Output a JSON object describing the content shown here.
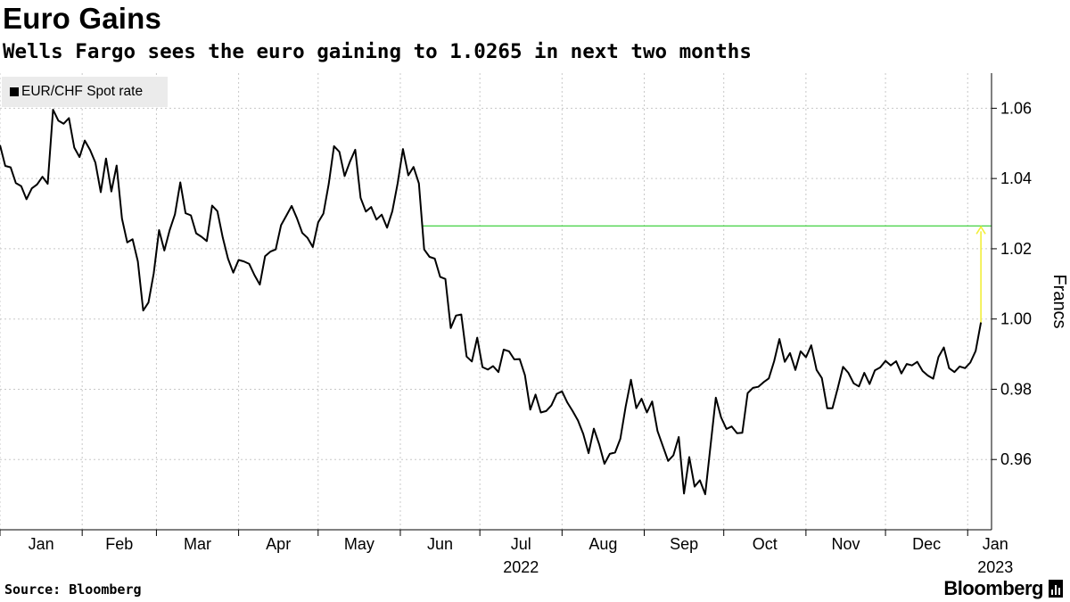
{
  "header": {
    "title": "Euro Gains",
    "subtitle": "Wells Fargo sees the euro gaining to 1.0265 in next two months"
  },
  "legend": {
    "label": "EUR/CHF Spot rate",
    "swatch_color": "#000000"
  },
  "footer": {
    "source": "Source: Bloomberg",
    "logo": "Bloomberg"
  },
  "colors": {
    "line": "#000000",
    "target_line": "#2ecc2e",
    "arrow": "#f2ef3a",
    "grid": "#c8c8c8"
  },
  "chart_data": {
    "type": "line",
    "title": "Euro Gains",
    "subtitle": "Wells Fargo sees the euro gaining to 1.0265 in next two months",
    "ylabel": "Francs",
    "xlabel": "",
    "ylim": [
      0.94,
      1.07
    ],
    "yticks": [
      0.96,
      0.98,
      1.0,
      1.02,
      1.04,
      1.06
    ],
    "ytick_labels": [
      "0.96",
      "0.98",
      "1.00",
      "1.02",
      "1.04",
      "1.06"
    ],
    "y_axis_side": "right",
    "grid": true,
    "legend_position": "top-left",
    "x_range": [
      "2022-01-01",
      "2023-01-10"
    ],
    "xticks": [
      {
        "label": "Jan",
        "date": "2022-01-01"
      },
      {
        "label": "Feb",
        "date": "2022-02-01"
      },
      {
        "label": "Mar",
        "date": "2022-03-01"
      },
      {
        "label": "Apr",
        "date": "2022-04-01"
      },
      {
        "label": "May",
        "date": "2022-05-01"
      },
      {
        "label": "Jun",
        "date": "2022-06-01"
      },
      {
        "label": "Jul",
        "date": "2022-07-01"
      },
      {
        "label": "Aug",
        "date": "2022-08-01"
      },
      {
        "label": "Sep",
        "date": "2022-09-01"
      },
      {
        "label": "Oct",
        "date": "2022-10-01"
      },
      {
        "label": "Nov",
        "date": "2022-11-01"
      },
      {
        "label": "Dec",
        "date": "2022-12-01"
      },
      {
        "label": "Jan",
        "date": "2023-01-01"
      }
    ],
    "year_labels": [
      {
        "label": "2022",
        "date": "2022-07-01"
      },
      {
        "label": "2023",
        "date": "2023-01-01"
      }
    ],
    "series": [
      {
        "name": "EUR/CHF Spot rate",
        "color": "#000000",
        "points": [
          [
            "2022-01-01",
            1.0495
          ],
          [
            "2022-01-03",
            1.0436
          ],
          [
            "2022-01-05",
            1.0432
          ],
          [
            "2022-01-07",
            1.0387
          ],
          [
            "2022-01-09",
            1.0378
          ],
          [
            "2022-01-11",
            1.0341
          ],
          [
            "2022-01-13",
            1.0372
          ],
          [
            "2022-01-15",
            1.0383
          ],
          [
            "2022-01-17",
            1.0405
          ],
          [
            "2022-01-19",
            1.0385
          ],
          [
            "2022-01-21",
            1.0596
          ],
          [
            "2022-01-23",
            1.0565
          ],
          [
            "2022-01-25",
            1.0556
          ],
          [
            "2022-01-27",
            1.0572
          ],
          [
            "2022-01-29",
            1.0488
          ],
          [
            "2022-01-31",
            1.0461
          ],
          [
            "2022-02-02",
            1.0508
          ],
          [
            "2022-02-04",
            1.0481
          ],
          [
            "2022-02-06",
            1.0445
          ],
          [
            "2022-02-08",
            1.0361
          ],
          [
            "2022-02-10",
            1.0457
          ],
          [
            "2022-02-12",
            1.0363
          ],
          [
            "2022-02-14",
            1.0437
          ],
          [
            "2022-02-16",
            1.0286
          ],
          [
            "2022-02-18",
            1.0218
          ],
          [
            "2022-02-20",
            1.0227
          ],
          [
            "2022-02-22",
            1.0164
          ],
          [
            "2022-02-24",
            1.0024
          ],
          [
            "2022-02-26",
            1.0047
          ],
          [
            "2022-02-28",
            1.013
          ],
          [
            "2022-03-02",
            1.0253
          ],
          [
            "2022-03-04",
            1.0195
          ],
          [
            "2022-03-06",
            1.0253
          ],
          [
            "2022-03-08",
            1.0298
          ],
          [
            "2022-03-10",
            1.0389
          ],
          [
            "2022-03-12",
            1.0301
          ],
          [
            "2022-03-14",
            1.0295
          ],
          [
            "2022-03-16",
            1.0244
          ],
          [
            "2022-03-18",
            1.0234
          ],
          [
            "2022-03-20",
            1.0222
          ],
          [
            "2022-03-22",
            1.0323
          ],
          [
            "2022-03-24",
            1.0307
          ],
          [
            "2022-03-26",
            1.0232
          ],
          [
            "2022-03-28",
            1.0172
          ],
          [
            "2022-03-30",
            1.0132
          ],
          [
            "2022-04-01",
            1.0168
          ],
          [
            "2022-04-03",
            1.0164
          ],
          [
            "2022-04-05",
            1.0157
          ],
          [
            "2022-04-07",
            1.0125
          ],
          [
            "2022-04-09",
            1.0098
          ],
          [
            "2022-04-11",
            1.0179
          ],
          [
            "2022-04-13",
            1.0192
          ],
          [
            "2022-04-15",
            1.0198
          ],
          [
            "2022-04-17",
            1.0267
          ],
          [
            "2022-04-19",
            1.0294
          ],
          [
            "2022-04-21",
            1.0322
          ],
          [
            "2022-04-23",
            1.0287
          ],
          [
            "2022-04-25",
            1.0245
          ],
          [
            "2022-04-27",
            1.0231
          ],
          [
            "2022-04-29",
            1.0205
          ],
          [
            "2022-05-01",
            1.0275
          ],
          [
            "2022-05-03",
            1.03
          ],
          [
            "2022-05-05",
            1.0385
          ],
          [
            "2022-05-07",
            1.0492
          ],
          [
            "2022-05-09",
            1.0476
          ],
          [
            "2022-05-11",
            1.0407
          ],
          [
            "2022-05-13",
            1.0448
          ],
          [
            "2022-05-15",
            1.0482
          ],
          [
            "2022-05-17",
            1.0345
          ],
          [
            "2022-05-19",
            1.0306
          ],
          [
            "2022-05-21",
            1.0319
          ],
          [
            "2022-05-23",
            1.0283
          ],
          [
            "2022-05-25",
            1.0297
          ],
          [
            "2022-05-27",
            1.026
          ],
          [
            "2022-05-29",
            1.0307
          ],
          [
            "2022-05-31",
            1.0387
          ],
          [
            "2022-06-02",
            1.0484
          ],
          [
            "2022-06-04",
            1.0409
          ],
          [
            "2022-06-06",
            1.0433
          ],
          [
            "2022-06-08",
            1.0386
          ],
          [
            "2022-06-10",
            1.0198
          ],
          [
            "2022-06-12",
            1.0177
          ],
          [
            "2022-06-14",
            1.0172
          ],
          [
            "2022-06-16",
            1.012
          ],
          [
            "2022-06-18",
            1.0114
          ],
          [
            "2022-06-20",
            0.9974
          ],
          [
            "2022-06-22",
            1.001
          ],
          [
            "2022-06-24",
            1.0013
          ],
          [
            "2022-06-26",
            0.9893
          ],
          [
            "2022-06-28",
            0.9879
          ],
          [
            "2022-06-30",
            0.9947
          ],
          [
            "2022-07-02",
            0.9863
          ],
          [
            "2022-07-04",
            0.9856
          ],
          [
            "2022-07-06",
            0.9866
          ],
          [
            "2022-07-08",
            0.9849
          ],
          [
            "2022-07-10",
            0.9913
          ],
          [
            "2022-07-12",
            0.9908
          ],
          [
            "2022-07-14",
            0.9885
          ],
          [
            "2022-07-16",
            0.9886
          ],
          [
            "2022-07-18",
            0.984
          ],
          [
            "2022-07-20",
            0.9742
          ],
          [
            "2022-07-22",
            0.9785
          ],
          [
            "2022-07-24",
            0.9734
          ],
          [
            "2022-07-26",
            0.9738
          ],
          [
            "2022-07-28",
            0.9754
          ],
          [
            "2022-07-30",
            0.9787
          ],
          [
            "2022-08-01",
            0.9794
          ],
          [
            "2022-08-03",
            0.9762
          ],
          [
            "2022-08-05",
            0.9738
          ],
          [
            "2022-08-07",
            0.9711
          ],
          [
            "2022-08-09",
            0.9673
          ],
          [
            "2022-08-11",
            0.9618
          ],
          [
            "2022-08-13",
            0.9688
          ],
          [
            "2022-08-15",
            0.9643
          ],
          [
            "2022-08-17",
            0.9588
          ],
          [
            "2022-08-19",
            0.9616
          ],
          [
            "2022-08-21",
            0.962
          ],
          [
            "2022-08-23",
            0.9659
          ],
          [
            "2022-08-25",
            0.9751
          ],
          [
            "2022-08-27",
            0.9827
          ],
          [
            "2022-08-29",
            0.9746
          ],
          [
            "2022-08-31",
            0.9773
          ],
          [
            "2022-09-02",
            0.9734
          ],
          [
            "2022-09-04",
            0.9765
          ],
          [
            "2022-09-06",
            0.9681
          ],
          [
            "2022-09-08",
            0.9639
          ],
          [
            "2022-09-10",
            0.9596
          ],
          [
            "2022-09-12",
            0.9612
          ],
          [
            "2022-09-14",
            0.9664
          ],
          [
            "2022-09-16",
            0.9503
          ],
          [
            "2022-09-18",
            0.9607
          ],
          [
            "2022-09-20",
            0.9523
          ],
          [
            "2022-09-22",
            0.9541
          ],
          [
            "2022-09-24",
            0.9501
          ],
          [
            "2022-09-26",
            0.9638
          ],
          [
            "2022-09-28",
            0.9776
          ],
          [
            "2022-09-30",
            0.972
          ],
          [
            "2022-10-02",
            0.9687
          ],
          [
            "2022-10-04",
            0.9694
          ],
          [
            "2022-10-06",
            0.9675
          ],
          [
            "2022-10-08",
            0.9676
          ],
          [
            "2022-10-10",
            0.9789
          ],
          [
            "2022-10-12",
            0.9804
          ],
          [
            "2022-10-14",
            0.9807
          ],
          [
            "2022-10-16",
            0.982
          ],
          [
            "2022-10-18",
            0.9831
          ],
          [
            "2022-10-20",
            0.988
          ],
          [
            "2022-10-22",
            0.9943
          ],
          [
            "2022-10-24",
            0.9878
          ],
          [
            "2022-10-26",
            0.9903
          ],
          [
            "2022-10-28",
            0.9855
          ],
          [
            "2022-10-30",
            0.9908
          ],
          [
            "2022-11-01",
            0.9891
          ],
          [
            "2022-11-03",
            0.9925
          ],
          [
            "2022-11-05",
            0.9855
          ],
          [
            "2022-11-07",
            0.9832
          ],
          [
            "2022-11-09",
            0.9746
          ],
          [
            "2022-11-11",
            0.9746
          ],
          [
            "2022-11-13",
            0.9804
          ],
          [
            "2022-11-15",
            0.9864
          ],
          [
            "2022-11-17",
            0.9847
          ],
          [
            "2022-11-19",
            0.9817
          ],
          [
            "2022-11-21",
            0.9808
          ],
          [
            "2022-11-23",
            0.9847
          ],
          [
            "2022-11-25",
            0.9815
          ],
          [
            "2022-11-27",
            0.9854
          ],
          [
            "2022-11-29",
            0.9862
          ],
          [
            "2022-12-01",
            0.9881
          ],
          [
            "2022-12-03",
            0.9868
          ],
          [
            "2022-12-05",
            0.988
          ],
          [
            "2022-12-07",
            0.9845
          ],
          [
            "2022-12-09",
            0.9872
          ],
          [
            "2022-12-11",
            0.9868
          ],
          [
            "2022-12-13",
            0.9878
          ],
          [
            "2022-12-15",
            0.9852
          ],
          [
            "2022-12-17",
            0.9839
          ],
          [
            "2022-12-19",
            0.983
          ],
          [
            "2022-12-21",
            0.9892
          ],
          [
            "2022-12-23",
            0.9919
          ],
          [
            "2022-12-25",
            0.986
          ],
          [
            "2022-12-27",
            0.9849
          ],
          [
            "2022-12-29",
            0.9865
          ],
          [
            "2022-12-31",
            0.986
          ],
          [
            "2023-01-02",
            0.9876
          ],
          [
            "2023-01-04",
            0.9909
          ],
          [
            "2023-01-06",
            0.999
          ]
        ]
      }
    ],
    "annotations": [
      {
        "type": "hline",
        "y": 1.0265,
        "from": "2022-06-09",
        "to": "2023-01-10",
        "color": "#2ecc2e"
      },
      {
        "type": "arrow",
        "x": "2023-01-06",
        "y_from": 0.999,
        "y_to": 1.0265,
        "color": "#f2ef3a"
      }
    ]
  }
}
